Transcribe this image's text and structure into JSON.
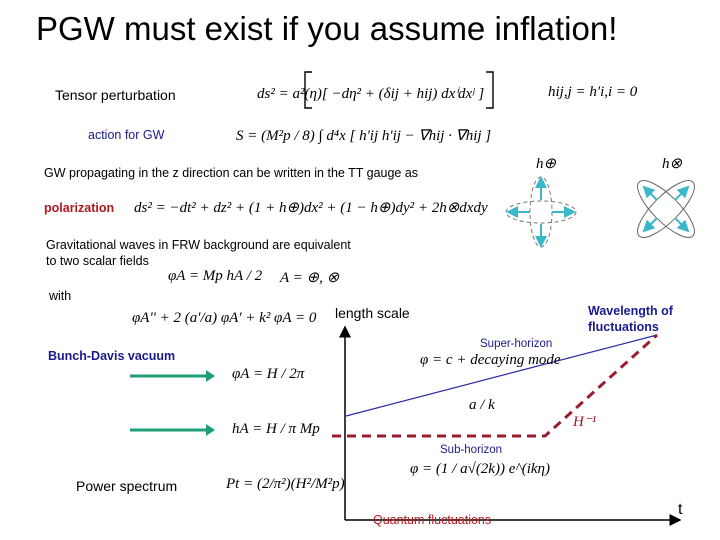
{
  "slide": {
    "title": "PGW must exist if you assume inflation!",
    "tensor_label": "Tensor perturbation",
    "action_label": "action for GW",
    "gw_text": "GW propagating in the z direction can be written in the TT gauge as",
    "polarization_label": "polarization",
    "frw_line1": "Gravitational waves in FRW background are equivalent",
    "frw_line2": "to two scalar fields",
    "with_label": "with",
    "bd_label": "Bunch-Davis vacuum",
    "power_label": "Power spectrum"
  },
  "equations": {
    "metric": "ds² = a²(η)[ −dη² + (δij + hij) dxⁱdxʲ ]",
    "tt_condition": "hij,j = h'i,i = 0",
    "action": "S = (M²p / 8) ∫ d⁴x [ h'ij h'ij − ∇hij · ∇hij ]",
    "polarization_metric": "ds² = −dt² + dz² + (1 + h⊕)dx² + (1 − h⊕)dy² + 2h⊗dxdy",
    "scalar_field": "φA = Mp hA / 2",
    "scalar_field_index": "A = ⊕, ⊗",
    "eom": "φA'' + 2 (a'/a) φA' + k² φA = 0",
    "phi_vacuum": "φA = H / 2π",
    "h_vacuum": "hA = H / π Mp",
    "power_spectrum": "Pt = (2/π²)(H²/M²p)",
    "superhorizon_mode": "φ = c + decaying mode",
    "a_over_k": "a / k",
    "hubble_inverse": "H⁻¹",
    "subhorizon_mode": "φ = (1 / a√(2k)) e^(ikη)"
  },
  "diagram": {
    "h_plus_label": "h⊕",
    "h_cross_label": "h⊗",
    "y_axis_label": "length scale",
    "x_axis_label": "t",
    "wavelength_label_line1": "Wavelength of",
    "wavelength_label_line2": "fluctuations",
    "super_horizon_label": "Super-horizon",
    "sub_horizon_label": "Sub-horizon",
    "quantum_label": "Quantum fluctuations",
    "colors": {
      "horizon": "#9b1c2c",
      "wavelength": "#2a2aa8",
      "arrows": "#1f9e7a",
      "polarization": "#3ab8c9",
      "label": "#1a1a8c",
      "quantum": "#c0181d"
    }
  }
}
